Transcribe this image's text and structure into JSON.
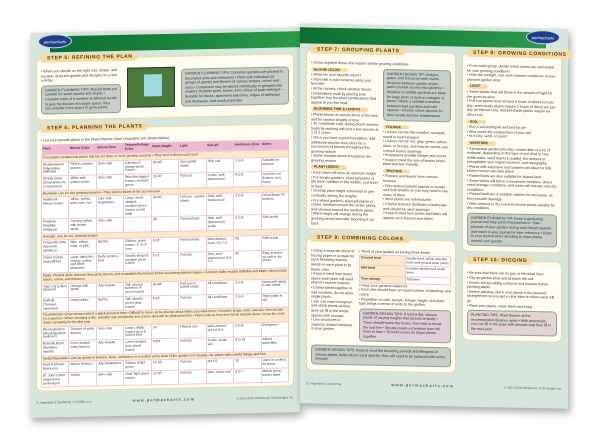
{
  "brand": "permacharts",
  "website": "www.permacharts.com",
  "copyright": "© 2001-2016 Mindsource Technologies Inc.",
  "left_footer": "2 | Vegetable & Gardening • 1-55080-xx-x",
  "right_footer": "3 | Vegetable & Gardening",
  "step5": {
    "title": "STEP 5: REFINING THE PLAN",
    "bullet": "When you decide on the right size, shape, and location, draw the garden plot designs on a new overlay",
    "tip1": "GARDEN PLANNING TIPS: Raised beds are suitable for small spaces and slopes • Consider beds of a number of different levels to give the illusion of a larger space; they also provide more space to grow plants",
    "tip2": "GARDEN PLANNING TIPS: Container gardens are planted in decorative pots and containers • Plant with individual (or groups of plants) and flowers of various shapes, colors and sizes • Containers may be placed individually or grouped into clusters of plants (pots, boxes, from others of patio settings) • Suitable for decks, apartment balconies, edges of walkways and driveways, and small properties"
  },
  "step6": {
    "title": "STEP 6: PLANNING THE PLANTS",
    "bullet": "List your favorite plants in the Plant Planner Chart (examples are shown below)",
    "headers": [
      "Plant",
      "Bloom Color",
      "Bloom Time",
      "Texture/Foliage Color",
      "Plant Height",
      "Light",
      "Soil pH",
      "Hardiness Zone",
      "Notes"
    ],
    "groups": [
      {
        "cat": "Perennials: Herbaceous plants that live for three or more growing seasons • They tend to bloom each year",
        "rows": [
          [
            "Meadowsweet (Filipendula palmata)",
            "Pink to crimson plumes",
            "June-July",
            "Clumps of glossy green leaves",
            "36-48\"",
            "Sun-partial shade",
            "Rich soil",
            "3 to 8",
            "Suitable for borders"
          ],
          [
            "Shasta Daisy (Chrysanthemum maximum)",
            "White with yellow center",
            "June-July",
            "Bunched jagged leaves, medium green",
            "18-36\"",
            "Full sun",
            "Fertile, well-drained soil",
            "4 to 9",
            "Good for cut flowers, very hardy"
          ]
        ]
      },
      {
        "cat": "Biennials: Live for two growing seasons • They tend to bloom in the second year",
        "rows": [
          [
            "Hollyhock (Alcea rosea)",
            "White, yellow, pink, rose, red",
            "Late July-September",
            "Large, heart-shaped, medium-green leaves on tall stalk",
            "24-60\"",
            "Full sun – partial shade",
            "Rich, well-drained soil",
            "3 to 9",
            "Great flower for borders"
          ],
          [
            "Foxglove (Digitalis ambigua)",
            "Creamy yellow with brown spots",
            "June-July",
            "",
            "36\"",
            "Partial shade",
            "Rich, well-drained soil, acidic",
            "3 to 8",
            "Self-seeds"
          ]
        ]
      },
      {
        "cat": "Annuals: Live for one growing season",
        "rows": [
          [
            "Forget-Me-Nots (Myosotis sylvatica)",
            "Blue, indigo, white or pink",
            "Spring",
            "Oblong, green leaves, 2\" to 3\" long",
            "6-18\"",
            "Partial shade",
            "Well-drained, loam, 6.0-7.4",
            "All",
            "Self-seeds"
          ],
          [
            "Zinnia (Zinnia angustifolia)",
            "Large daisy-like orange, yellow and white blossoms",
            "Early summer-frost",
            "Needle-shaped, medium green leaves",
            "6-12\"",
            "Full sun",
            "Rich, well-drained soil, 6.0-7.4",
            "All",
            "Easy to grow; do well in dry areas"
          ]
        ]
      },
      {
        "cat": "Bulbs: Planted while dormant, they grow, bloom, and reestablish themselves before becoming dormant again • Common bulbs include daffodils and tulips • Also include tubers, corms, and rhizomes",
        "rows": [
          [
            "Tiger Lily (Lilium tigrinum)",
            "Orange with spots",
            "July-August",
            "Tall, slender bunches of green leaves",
            "36-48\"",
            "Full sun to partial shade",
            "All conditions",
            "3 to 8",
            "Grow well along in wet areas"
          ],
          [
            "Daffodil (Trumpet narcissus)",
            "Deep yellow",
            "Spring",
            "Tall, slender, green-gray leaves",
            "6-18\"",
            "Full sun",
            "All conditions",
            "3 to 8",
            "Plant bulbs in fall"
          ]
        ]
      },
      {
        "cat": "Trees/Shrubs: Grow strong roots in a quick period of time • Difficult to move, so be precise about where you want them • Consider shape, form, and size; then decide on a species • When choosing a site, consider size at maturity and ensure area will be obstruction-free • Plant roots so they don't block window views • Keep the roots moist constantly for the first year",
        "rows": [
          [
            "Rhododendron (Rhododendron bodinieri)",
            "Trusses of white flowers",
            "June-July",
            "Large, elliptic leaves up to 8 inches long",
            "24\"",
            "Filtered sun",
            "Well-drained, pH 4.5-5.5",
            "5 to 8",
            "Evergreen"
          ],
          [
            "Butterfly Bush (Buddleia davidii)",
            "Cone-shaped violet flowers",
            "July-August",
            "Lance-shaped, gray-green leaves",
            "5-8 ft",
            "Full sun",
            "Fertile, acidic soil",
            "5 to 10",
            "Attract butterflies"
          ]
        ]
      },
      {
        "cat": "Herbs/Vegetables: Can be grown in borders, beds, containers or a section at the back of the garden • For beauty, use plants with colorful foliage and fruit",
        "rows": [
          [
            "Basil (Ocimum basilicum)",
            "Mauve flowers",
            "July-September",
            "Glossy, bright green",
            "12-18\"",
            "Full sun",
            "pH 6.5",
            "10",
            "Used in cooking for flavor"
          ],
          [
            "St. John's Wort (Hypericum perforatum)",
            "Yellow",
            "June-July",
            "Oval, light green leaves",
            "12-36\"",
            "Full sun",
            "Rich, acidic soil",
            "3 to 7",
            "Makes great border plant"
          ]
        ]
      }
    ]
  },
  "step7": {
    "title": "STEP 7: GROUPING PLANTS",
    "bullet": "Group together those that require similar growing conditions",
    "sections": [
      {
        "label": "BLOOM COLOR",
        "items": [
          "What are your favorite colors?",
          "Start with a color scheme using your favorites",
          "At the nursery, check whether bloom combinations work by placing pots together; buy the plant combinations that appeal to you the most"
        ]
      },
      {
        "label": "BLOOMING TIME & LENGTH",
        "items": [
          "Plants bloom at various times of the year and for various lengths of time",
          "To coordinate color during bloom season, begin by working with just a few species in 1 to 3 colors",
          "Once you have a good foundation, add additional species and colors for a succession of blooms throughout the growing season",
          "Some annuals bloom throughout the growing season"
        ]
      },
      {
        "label": "PLANT HEIGHT",
        "items": [
          "Each plant will have an optimum height",
          "For border gardens, plant tall plants at the back, medium in the middle, and short in front",
          "Overlap plant height somewhat to give continuity among the heights",
          "For island gardens, plant tall plants in center, medium around the center plants, and shortest around the medium plants",
          "Plant height will change during the growing period and after blooming if cut back"
        ]
      }
    ],
    "tip": "GARDEN DESIGN TIP: Hedges, gates, and fences provide useful divisions between garden styles; paths provide access into gardens • Meadow or wildlife gardens are ideal for large plots of land on cottages or farms • Make a suitable transition between kept gardens and wild spaces • Choose native species for best results and low maintenance",
    "sections2": [
      {
        "label": "FOLIAGE",
        "items": [
          "Leaves can be thin needles, serrated, round or heart-shaped",
          "Leaves can be red, gray, green, yellow, silver, or bronze, and may be varied; use colored leaves sparingly",
          "Evergreens provide foliage year round",
          "Keep in mind the size of leaves when plant reaches maturity"
        ]
      },
      {
        "label": "TEXTURE",
        "items": [
          "Flowers and leaves have various textures",
          "Fine-textured plants appear to recede and look smaller so you may need to use many of them",
          "Most plants are soft-textured",
          "Coarse textures dominate a landscape and should be used sparingly",
          "Keep in mind how trunks and limbs will appear once leaves have fallen"
        ]
      }
    ]
  },
  "step8": {
    "title": "STEP 8: GROWING CONDITIONS",
    "bullets": [
      "From each group, decide which plants are well suited for your growing conditions",
      "Note the sunlight, soil, and moisture conditions of your planned garden plots"
    ],
    "sections": [
      {
        "label": "LIGHT",
        "items": [
          "Select plants that will thrive in the amount of light for the given location",
          "Full sun plants need at least 6 hours of direct sun per day, semi-shade plants require 2 hours of direct sun per day (or filtered sun), and full shade plants require no direct sun"
        ]
      },
      {
        "label": "SOIL",
        "items": [
          "Buy a soil-testing kit and test for pH",
          "Also check the composition of your soil",
          "Is it clay, sand, or loam?"
        ]
      },
      {
        "label": "MOISTURE",
        "items": [
          "A proposed garden plot may contain little or a lot of moisture, depending on the type of soil (that is, clay holds water, sand drains it readily), the amount of precipitation your region receives, and topography",
          "Plants with extensive root systems are ideal for hills where erosion can take place",
          "Raised beds are also suitable for sloped land",
          "Some plants will thrive in excessive moisture, others need average conditions, and some will tolerate only dry conditions",
          "Raised beds are a suitable solution for wet areas, as they provide drainage",
          "Add compost to dry soil and choose plants suitable for dry conditions"
        ]
      }
    ],
    "tip": "GARDEN PLANNING TIP: Keep a gardening journal and map plant characteristics • Take pictures of your garden during each bloom season and insert in your journal for later reference • Refer to your journal when deciding to move plants around your garden"
  },
  "step9": {
    "title": "STEP 9: COMBINING COLORS",
    "left_items": [
      "Using a separate sheet of tracing paper or acetate for each blooming season, sketch in each plant to its flower color",
      "Keep in mind how much space each plant will need when it reaches maturity",
      "Clump plants together in odd numbers; do not plant single plants",
      "You can enter evergreen and shrub plants as they grow up fill in the empty spaces with annuals",
      "Use structures to organize related elements in your garden"
    ],
    "levels_intro": "Think of your garden as having three levels",
    "levels": [
      [
        "Ground level",
        "Garden bed, which includes mats and ground-level plants"
      ],
      [
        "Mid-level",
        "Includes shrubs and small trees"
      ],
      [
        "Tree canopy",
        "Tall trees"
      ]
    ],
    "right_items": [
      "Keep your gardens balanced",
      "Each plot should have an equal number of plantings and colors",
      "Repetition of color, texture, foliage, height, and plant type brings a sense of unity to the garden"
    ],
    "tip1": "GARDEN DESIGN TIPS: If land is flat, choose plants of varying heights that spread vertically • Trees should frame the house, then help to break the roof line • Shrubs create a transition from tall trees to lawn • Ground covers tie larger plants together",
    "tip2": "GARDEN DESIGN TIPS: Keep in mind the blooming periods and lifespans of various plants; bulbs bloom early and die; they will need to be replaced with some annuals"
  },
  "step10": {
    "title": "STEP 10: DIGGING",
    "items": [
      "Be sure that there are no gas or electrical lines",
      "Dig up garden plots and prepare the soil",
      "Enrich soil by adding compost and manure before planting plants",
      "Before planting, place your plants in the planned arrangement so you get a clear idea of where each will go",
      "Plant your plants, water them and enjoy"
    ],
    "tip": "PLANTING TIPS: Plant flowers at the recommended distance apart • With perennials, you can fill in the gaps with annuals until they fill in the next year"
  }
}
